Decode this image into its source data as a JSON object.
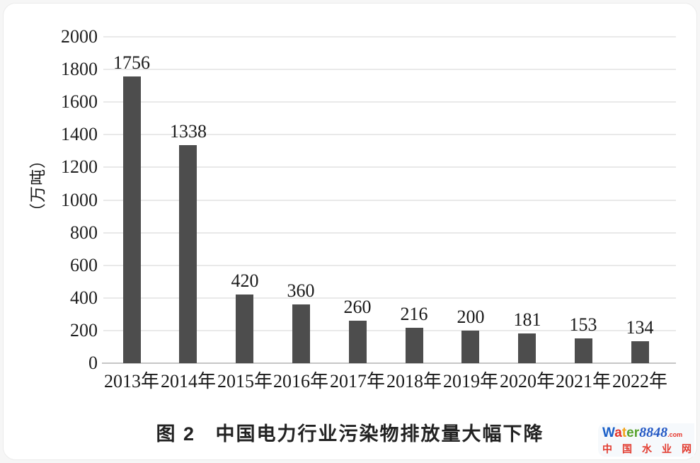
{
  "chart_data": {
    "type": "bar",
    "title": "图 2   中国电力行业污染物排放量大幅下降",
    "ylabel": "（万吨）",
    "xlabel": "",
    "categories": [
      "2013年",
      "2014年",
      "2015年",
      "2016年",
      "2017年",
      "2018年",
      "2019年",
      "2020年",
      "2021年",
      "2022年"
    ],
    "values": [
      1756,
      1338,
      420,
      360,
      260,
      216,
      200,
      181,
      153,
      134
    ],
    "ylim": [
      0,
      2000
    ],
    "yticks": [
      0,
      200,
      400,
      600,
      800,
      1000,
      1200,
      1400,
      1600,
      1800,
      2000
    ],
    "grid": true,
    "legend": "none",
    "bar_color": "#4d4d4d",
    "gridline_color": "#e9e9e9",
    "axis_line_color": "#c6c6c6",
    "text_color": "#1a1a1a"
  },
  "watermark": {
    "brand_letters": [
      {
        "ch": "W",
        "color": "#1a5fc8"
      },
      {
        "ch": "a",
        "color": "#e6342a"
      },
      {
        "ch": "t",
        "color": "#f2a41b"
      },
      {
        "ch": "e",
        "color": "#58a32e"
      },
      {
        "ch": "r",
        "color": "#58a32e"
      }
    ],
    "brand_suffix": "8848",
    "brand_suffix_color": "#2257c4",
    "brand_tld": ".com",
    "brand_tld_color": "#e6342a",
    "tagline": "中国水业网",
    "tagline_color": "#e23a2e"
  }
}
